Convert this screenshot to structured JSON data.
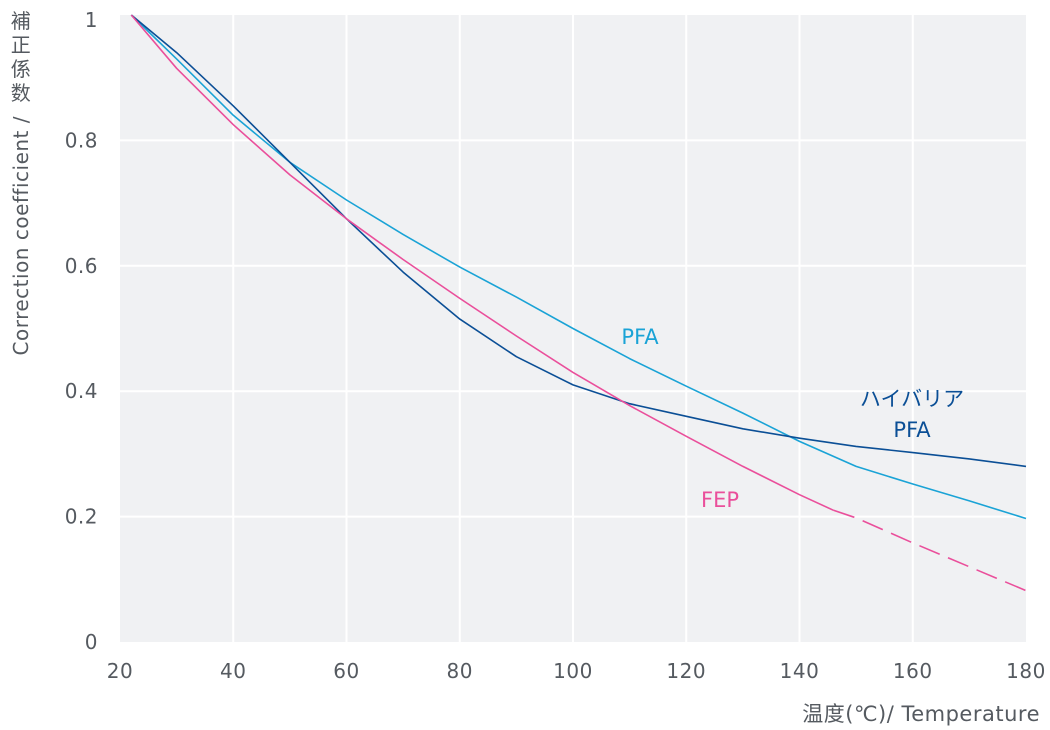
{
  "chart_data": {
    "type": "line",
    "xlabel": "温度(℃)/ Temperature",
    "ylabel_jp": [
      "補",
      "正",
      "係",
      "数"
    ],
    "ylabel": "Correction coefficient /",
    "xlim": [
      20,
      180
    ],
    "ylim": [
      0,
      1
    ],
    "x_ticks": [
      "20",
      "40",
      "60",
      "80",
      "100",
      "120",
      "140",
      "160",
      "180"
    ],
    "y_ticks": [
      "0",
      "0.2",
      "0.4",
      "0.6",
      "0.8",
      "1"
    ],
    "grid": true,
    "series": [
      {
        "name": "PFA",
        "color": "#1aa3d6",
        "points": [
          [
            22,
            1.0
          ],
          [
            30,
            0.93
          ],
          [
            40,
            0.84
          ],
          [
            50,
            0.765
          ],
          [
            60,
            0.705
          ],
          [
            70,
            0.65
          ],
          [
            80,
            0.598
          ],
          [
            90,
            0.55
          ],
          [
            100,
            0.5
          ],
          [
            110,
            0.452
          ],
          [
            120,
            0.408
          ],
          [
            130,
            0.365
          ],
          [
            140,
            0.32
          ],
          [
            150,
            0.28
          ],
          [
            160,
            0.252
          ],
          [
            170,
            0.225
          ],
          [
            180,
            0.197
          ]
        ]
      },
      {
        "name_lines": [
          "ハイバリア",
          "PFA"
        ],
        "color": "#0b4f96",
        "points": [
          [
            22,
            1.0
          ],
          [
            30,
            0.94
          ],
          [
            40,
            0.855
          ],
          [
            50,
            0.765
          ],
          [
            60,
            0.675
          ],
          [
            70,
            0.59
          ],
          [
            80,
            0.515
          ],
          [
            90,
            0.455
          ],
          [
            100,
            0.41
          ],
          [
            110,
            0.38
          ],
          [
            120,
            0.36
          ],
          [
            130,
            0.34
          ],
          [
            140,
            0.325
          ],
          [
            150,
            0.312
          ],
          [
            160,
            0.302
          ],
          [
            170,
            0.292
          ],
          [
            180,
            0.28
          ]
        ]
      },
      {
        "name": "FEP",
        "color": "#ea4f9b",
        "points": [
          [
            22,
            1.0
          ],
          [
            30,
            0.915
          ],
          [
            40,
            0.825
          ],
          [
            50,
            0.745
          ],
          [
            60,
            0.675
          ],
          [
            70,
            0.61
          ],
          [
            80,
            0.548
          ],
          [
            90,
            0.488
          ],
          [
            100,
            0.43
          ],
          [
            110,
            0.377
          ],
          [
            120,
            0.328
          ],
          [
            130,
            0.28
          ],
          [
            140,
            0.235
          ],
          [
            146,
            0.21
          ]
        ],
        "dashed_points": [
          [
            146,
            0.21
          ],
          [
            150,
            0.198
          ],
          [
            160,
            0.158
          ],
          [
            170,
            0.12
          ],
          [
            180,
            0.082
          ]
        ]
      }
    ]
  }
}
